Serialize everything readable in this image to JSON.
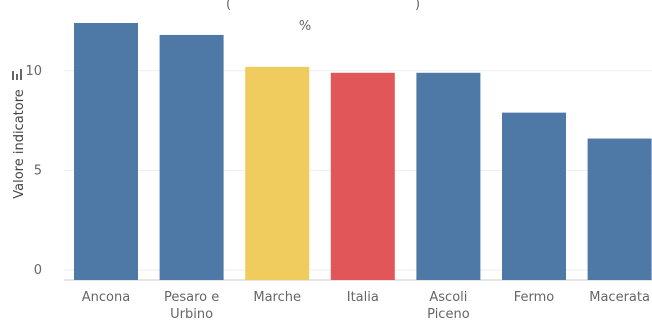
{
  "chart_data": {
    "type": "bar",
    "title_fragment": "(",
    "title_fragment_right": ")",
    "unit": "%",
    "ylabel": "Valore indicatore",
    "ylim": [
      -0.5,
      12.8
    ],
    "yticks": [
      "0",
      "5",
      "10"
    ],
    "ytick_values": [
      0,
      5,
      10
    ],
    "categories": [
      [
        "Ancona"
      ],
      [
        "Pesaro e",
        "Urbino"
      ],
      [
        "Marche"
      ],
      [
        "Italia"
      ],
      [
        "Ascoli",
        "Piceno"
      ],
      [
        "Fermo"
      ],
      [
        "Macerata"
      ]
    ],
    "values": [
      12.4,
      11.8,
      10.2,
      9.9,
      9.9,
      7.9,
      6.6
    ],
    "colors": [
      "#4e79a7",
      "#4e79a7",
      "#f0cb5e",
      "#e15759",
      "#4e79a7",
      "#4e79a7",
      "#4e79a7"
    ],
    "grid": true,
    "legend": "none",
    "axis_icon": "bar-chart-icon"
  }
}
